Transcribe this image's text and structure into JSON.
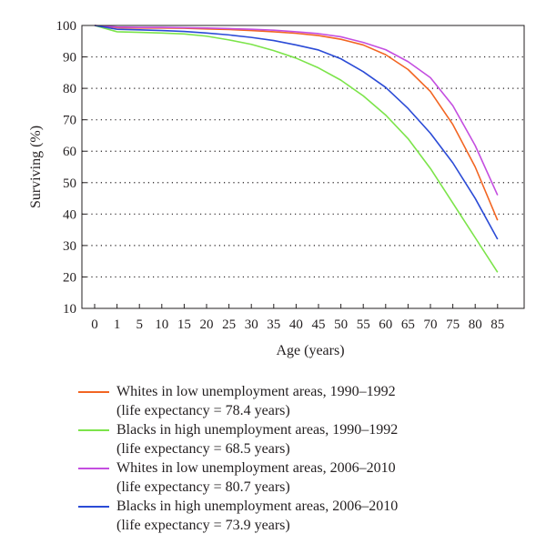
{
  "chart_data": {
    "type": "line",
    "title": "",
    "xlabel": "Age (years)",
    "ylabel": "Surviving (%)",
    "ylim": [
      10,
      100
    ],
    "y_ticks": [
      10,
      20,
      30,
      40,
      50,
      60,
      70,
      80,
      90,
      100
    ],
    "x_tick_labels": [
      "0",
      "1",
      "5",
      "10",
      "15",
      "20",
      "25",
      "30",
      "35",
      "40",
      "45",
      "50",
      "55",
      "60",
      "65",
      "70",
      "75",
      "80",
      "85"
    ],
    "grid": "horizontal dotted",
    "legend_position": "below",
    "series": [
      {
        "name": "Whites in low unemployment areas, 1990–1992",
        "note": "(life expectancy = 78.4 years)",
        "color": "#f26522",
        "values": [
          100,
          99.3,
          99.2,
          99.2,
          99.1,
          98.9,
          98.7,
          98.4,
          98.0,
          97.5,
          96.8,
          95.6,
          93.8,
          90.7,
          86.0,
          79.0,
          68.5,
          55.0,
          38.0
        ]
      },
      {
        "name": "Blacks in high unemployment areas, 1990–1992",
        "note": "(life expectancy = 68.5 years)",
        "color": "#7ce44a",
        "values": [
          100,
          98.0,
          97.8,
          97.6,
          97.3,
          96.6,
          95.4,
          94.0,
          92.0,
          89.6,
          86.5,
          82.6,
          77.6,
          71.5,
          64.0,
          54.5,
          43.5,
          32.5,
          21.5
        ]
      },
      {
        "name": "Whites in low unemployment areas, 2006–2010",
        "note": "(life expectancy = 80.7 years)",
        "color": "#c44ee0",
        "values": [
          100,
          99.5,
          99.4,
          99.4,
          99.3,
          99.2,
          99.0,
          98.8,
          98.5,
          98.0,
          97.4,
          96.4,
          94.6,
          92.3,
          88.5,
          83.4,
          74.5,
          61.8,
          46.0
        ]
      },
      {
        "name": "Blacks in high unemployment areas, 2006–2010",
        "note": "(life expectancy = 73.9 years)",
        "color": "#2b4bd6",
        "values": [
          100,
          98.8,
          98.6,
          98.4,
          98.1,
          97.6,
          97.0,
          96.2,
          95.2,
          93.8,
          92.2,
          89.4,
          85.3,
          80.3,
          73.6,
          65.7,
          56.3,
          45.0,
          32.0
        ]
      }
    ]
  }
}
